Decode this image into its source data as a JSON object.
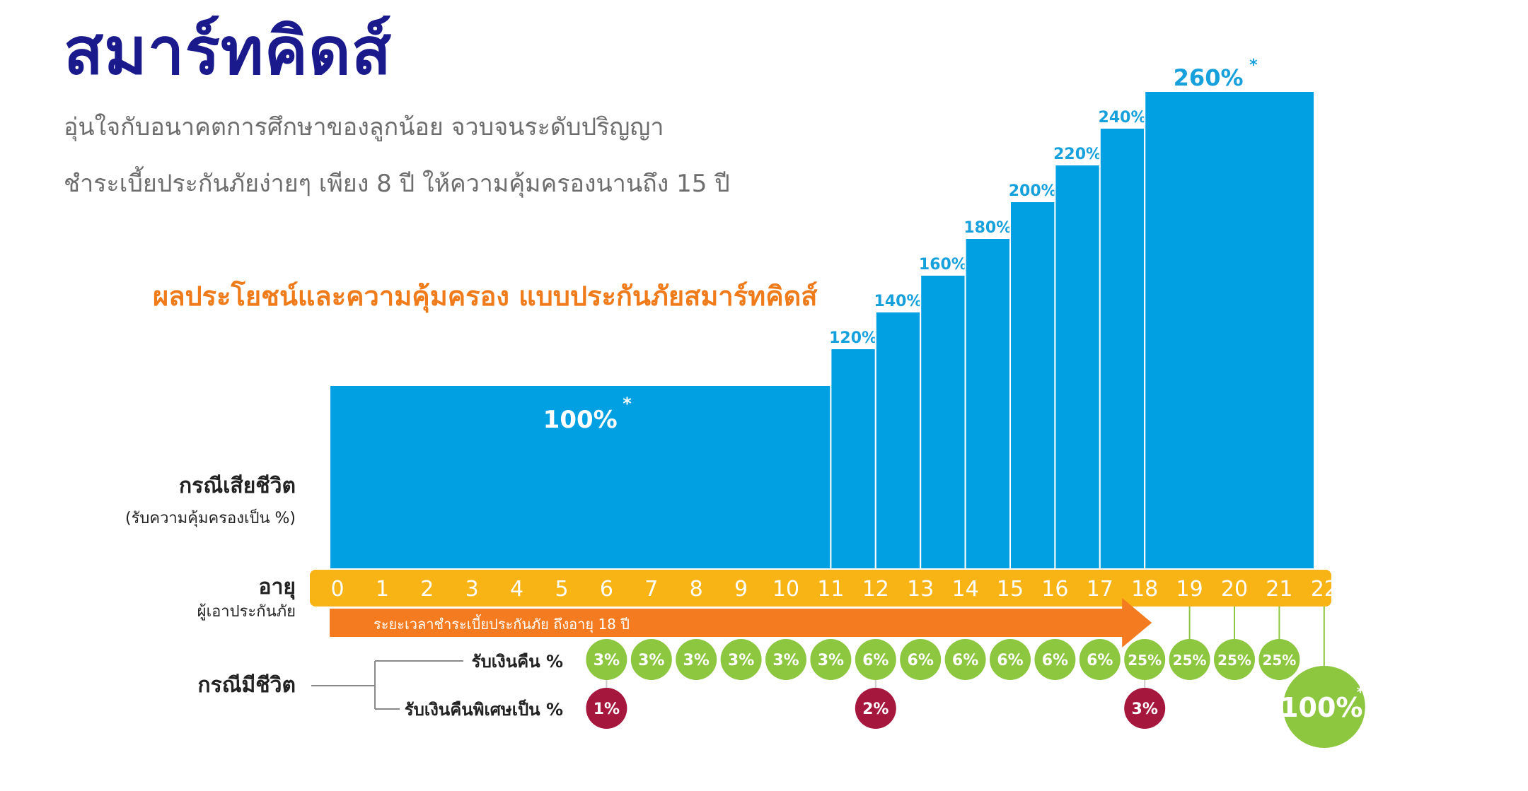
{
  "header": {
    "title": "สมาร์ทคิดส์",
    "subtitle1": "อุ่นใจกับอนาคตการศึกษาของลูกน้อย จวบจนระดับปริญญา",
    "subtitle2": "ชำระเบี้ยประกันภัยง่ายๆ เพียง 8 ปี ให้ความคุ้มครองนานถึง 15 ปี"
  },
  "chart_title": "ผลประโยชน์และความคุ้มครอง แบบประกันภัยสมาร์ทคิดส์",
  "colors": {
    "blue": "#00a0e2",
    "blue_label": "#16a0dc",
    "yellow": "#f8b315",
    "orange": "#f47b20",
    "green": "#8dc63f",
    "maroon": "#a6173d",
    "navy": "#1a1a8c",
    "text": "#222222"
  },
  "chart_data": {
    "type": "bar",
    "death_label": "กรณีเสียชีวิต",
    "death_sublabel": "(รับความคุ้มครองเป็น %)",
    "age_label": "อายุ",
    "age_sublabel": "ผู้เอาประกันภัย",
    "ages": [
      "0",
      "1",
      "2",
      "3",
      "4",
      "5",
      "6",
      "7",
      "8",
      "9",
      "10",
      "11",
      "12",
      "13",
      "14",
      "15",
      "16",
      "17",
      "18",
      "19",
      "20",
      "21",
      "22"
    ],
    "death_segments": [
      {
        "from": 0,
        "to": 11,
        "value": 100,
        "label": "100%",
        "marker": "*"
      },
      {
        "from": 11,
        "to": 12,
        "value": 120,
        "label": "120%",
        "marker": ""
      },
      {
        "from": 12,
        "to": 13,
        "value": 140,
        "label": "140%",
        "marker": ""
      },
      {
        "from": 13,
        "to": 14,
        "value": 160,
        "label": "160%",
        "marker": ""
      },
      {
        "from": 14,
        "to": 15,
        "value": 180,
        "label": "180%",
        "marker": ""
      },
      {
        "from": 15,
        "to": 16,
        "value": 200,
        "label": "200%",
        "marker": ""
      },
      {
        "from": 16,
        "to": 17,
        "value": 220,
        "label": "220%",
        "marker": ""
      },
      {
        "from": 17,
        "to": 18,
        "value": 240,
        "label": "240%",
        "marker": "*"
      },
      {
        "from": 18,
        "to": 22,
        "value": 260,
        "label": "260%",
        "marker": "*"
      }
    ],
    "premium_label": "ระยะเวลาชำระเบี้ยประกันภัย ถึงอายุ 18 ปี",
    "premium_to_age": 18,
    "survival_label": "กรณีมีชีวิต",
    "cashback_label": "รับเงินคืน %",
    "special_label": "รับเงินคืนพิเศษเป็น %",
    "cashback": [
      {
        "age": 6,
        "value": 3
      },
      {
        "age": 7,
        "value": 3
      },
      {
        "age": 8,
        "value": 3
      },
      {
        "age": 9,
        "value": 3
      },
      {
        "age": 10,
        "value": 3
      },
      {
        "age": 11,
        "value": 3
      },
      {
        "age": 12,
        "value": 6
      },
      {
        "age": 13,
        "value": 6
      },
      {
        "age": 14,
        "value": 6
      },
      {
        "age": 15,
        "value": 6
      },
      {
        "age": 16,
        "value": 6
      },
      {
        "age": 17,
        "value": 6
      },
      {
        "age": 18,
        "value": 25
      },
      {
        "age": 19,
        "value": 25
      },
      {
        "age": 20,
        "value": 25
      },
      {
        "age": 21,
        "value": 25
      }
    ],
    "special": [
      {
        "age": 6,
        "value": 1
      },
      {
        "age": 12,
        "value": 2
      },
      {
        "age": 18,
        "value": 3
      }
    ],
    "maturity": {
      "age": 22,
      "value": 100,
      "marker": "**"
    },
    "percent_sign": "%"
  }
}
